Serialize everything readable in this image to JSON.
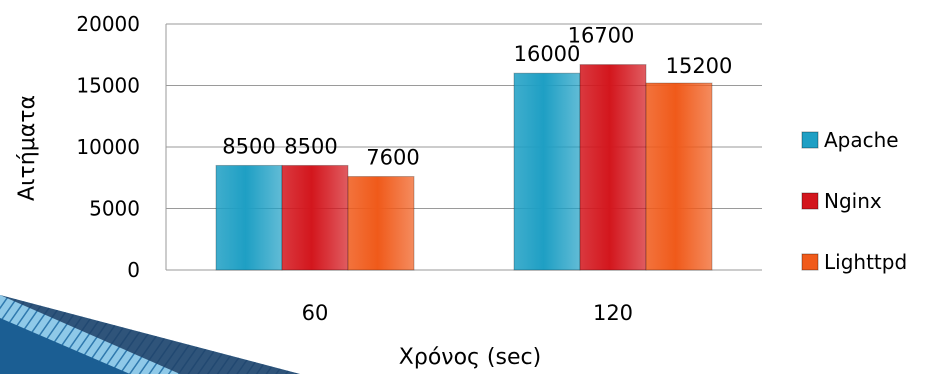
{
  "chart_data": {
    "type": "bar",
    "title": "",
    "xlabel": "Χρόνος (sec)",
    "ylabel": "Αιτήματα",
    "categories": [
      "60",
      "120"
    ],
    "series": [
      {
        "name": "Apache",
        "values": [
          8500,
          16000
        ],
        "color": "#1E9FC4"
      },
      {
        "name": "Nginx",
        "values": [
          8500,
          16700
        ],
        "color": "#D3161D"
      },
      {
        "name": "Lighttpd",
        "values": [
          7600,
          15200
        ],
        "color": "#F05A1A"
      }
    ],
    "data_labels": [
      [
        "8500",
        "16000"
      ],
      [
        "8500",
        "16700"
      ],
      [
        "7600",
        "15200"
      ]
    ],
    "yticks": [
      "0",
      "5000",
      "10000",
      "15000",
      "20000"
    ],
    "ylim": [
      0,
      20000
    ],
    "grid": true,
    "legend_position": "right"
  },
  "decoration": {
    "corner_graphic": "blue-page-curl-stripe",
    "colors": [
      "#1B5E93",
      "#8FC9E8",
      "#1F3F66"
    ]
  }
}
